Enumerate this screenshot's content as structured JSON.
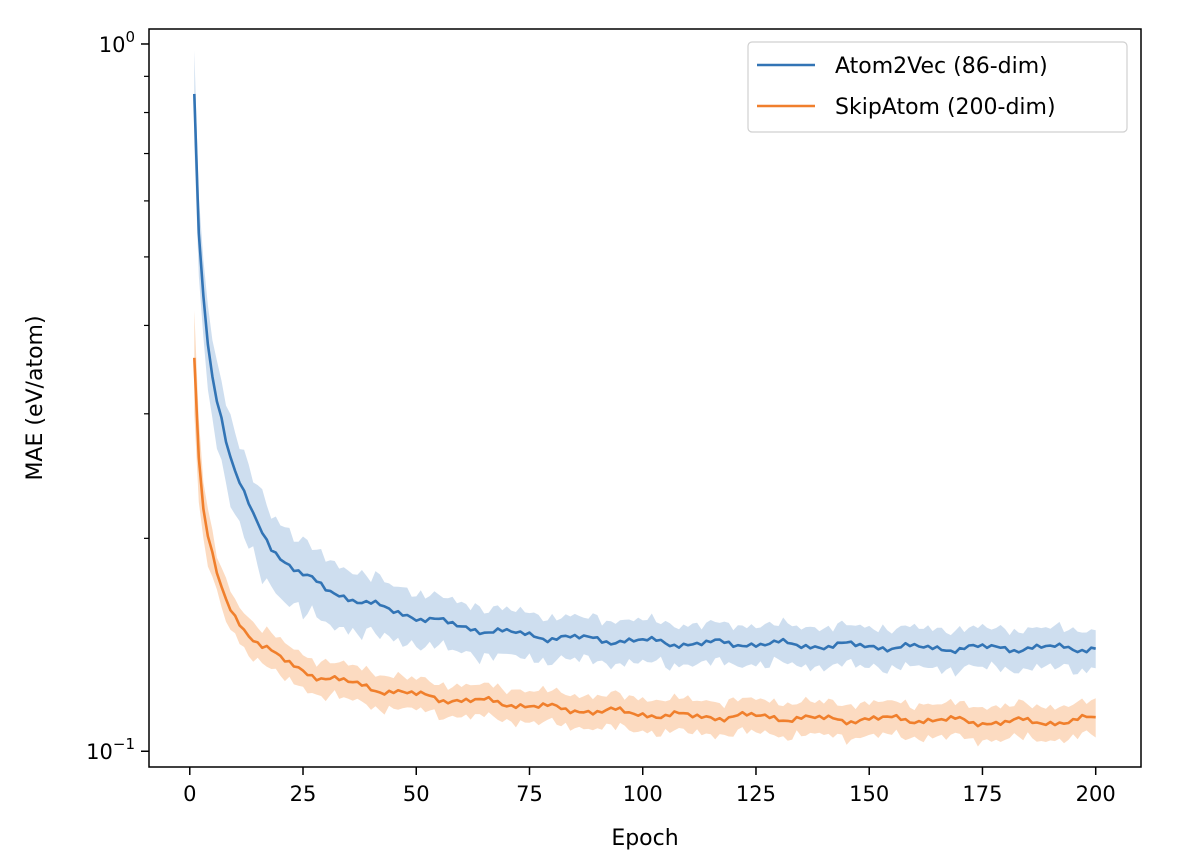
{
  "chart_data": {
    "type": "line",
    "xlabel": "Epoch",
    "ylabel": "MAE (eV/atom)",
    "xlim": [
      -9,
      210
    ],
    "ylim": [
      0.095,
      1.05
    ],
    "yscale": "log",
    "x_ticks": [
      0,
      25,
      50,
      75,
      100,
      125,
      150,
      175,
      200
    ],
    "y_major_ticks": [
      {
        "value": 1.0,
        "base": "10",
        "exp": "0"
      },
      {
        "value": 0.1,
        "base": "10",
        "exp": "−1"
      }
    ],
    "y_minor_ticks": [
      0.2,
      0.3,
      0.4,
      0.5,
      0.6,
      0.7,
      0.8,
      0.9
    ],
    "legend_position": "upper right",
    "grid": false,
    "series": [
      {
        "name": "Atom2Vec (86-dim)",
        "color": "#3274b5",
        "band_color": "#c5d8ec",
        "x": [
          1,
          2,
          3,
          4,
          5,
          6,
          7,
          8,
          9,
          10,
          12,
          14,
          16,
          18,
          20,
          25,
          30,
          35,
          40,
          50,
          60,
          70,
          75,
          80,
          90,
          100,
          110,
          125,
          140,
          150,
          160,
          175,
          190,
          200
        ],
        "values": [
          0.85,
          0.54,
          0.44,
          0.38,
          0.34,
          0.315,
          0.295,
          0.275,
          0.26,
          0.248,
          0.23,
          0.215,
          0.205,
          0.195,
          0.188,
          0.177,
          0.17,
          0.165,
          0.161,
          0.155,
          0.15,
          0.147,
          0.146,
          0.145,
          0.144,
          0.143,
          0.142,
          0.142,
          0.141,
          0.141,
          0.14,
          0.14,
          0.14,
          0.14
        ],
        "band_halfwidth": [
          0.13,
          0.07,
          0.055,
          0.05,
          0.045,
          0.042,
          0.04,
          0.037,
          0.035,
          0.033,
          0.03,
          0.028,
          0.026,
          0.024,
          0.022,
          0.02,
          0.018,
          0.016,
          0.015,
          0.013,
          0.012,
          0.011,
          0.011,
          0.01,
          0.01,
          0.01,
          0.009,
          0.009,
          0.009,
          0.009,
          0.009,
          0.009,
          0.009,
          0.009
        ]
      },
      {
        "name": "SkipAtom (200-dim)",
        "color": "#f07f2c",
        "band_color": "#fbd5b6",
        "x": [
          1,
          2,
          3,
          4,
          5,
          6,
          7,
          8,
          9,
          10,
          12,
          14,
          16,
          18,
          20,
          25,
          30,
          35,
          40,
          50,
          60,
          70,
          75,
          80,
          90,
          100,
          110,
          125,
          140,
          150,
          160,
          175,
          190,
          200
        ],
        "values": [
          0.36,
          0.26,
          0.22,
          0.2,
          0.188,
          0.178,
          0.17,
          0.164,
          0.159,
          0.155,
          0.149,
          0.145,
          0.141,
          0.138,
          0.135,
          0.13,
          0.127,
          0.125,
          0.123,
          0.12,
          0.118,
          0.117,
          0.116,
          0.115,
          0.114,
          0.113,
          0.112,
          0.112,
          0.111,
          0.111,
          0.111,
          0.11,
          0.11,
          0.111
        ],
        "band_halfwidth": [
          0.06,
          0.035,
          0.02,
          0.016,
          0.014,
          0.012,
          0.011,
          0.01,
          0.01,
          0.009,
          0.009,
          0.008,
          0.008,
          0.008,
          0.008,
          0.007,
          0.007,
          0.007,
          0.007,
          0.006,
          0.006,
          0.006,
          0.006,
          0.006,
          0.006,
          0.006,
          0.006,
          0.006,
          0.006,
          0.006,
          0.006,
          0.006,
          0.006,
          0.006
        ]
      }
    ]
  }
}
